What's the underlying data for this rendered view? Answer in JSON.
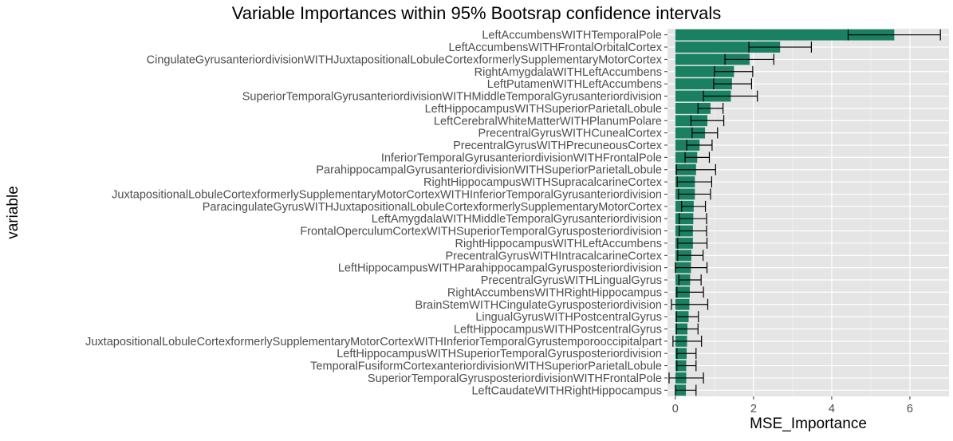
{
  "chart_data": {
    "type": "bar",
    "orientation": "horizontal",
    "title": "Variable Importances within 95% Bootsrap confidence intervals",
    "xlabel": "MSE_Importance",
    "ylabel": "variable",
    "xlim": [
      -0.2,
      7.0
    ],
    "xticks": [
      0,
      2,
      4,
      6
    ],
    "grid": true,
    "bar_color": "#1a8062",
    "panel_background": "#e5e5e5",
    "categories": [
      "LeftAccumbensWITHTemporalPole",
      "LeftAccumbensWITHFrontalOrbitalCortex",
      "CingulateGyrusanteriordivisionWITHJuxtapositionalLobuleCortexformerlySupplementaryMotorCortex",
      "RightAmygdalaWITHLeftAccumbens",
      "LeftPutamenWITHLeftAccumbens",
      "SuperiorTemporalGyrusanteriordivisionWITHMiddleTemporalGyrusanteriordivision",
      "LeftHippocampusWITHSuperiorParietalLobule",
      "LeftCerebralWhiteMatterWITHPlanumPolare",
      "PrecentralGyrusWITHCunealCortex",
      "PrecentralGyrusWITHPrecuneousCortex",
      "InferiorTemporalGyrusanteriordivisionWITHFrontalPole",
      "ParahippocampalGyrusanteriordivisionWITHSuperiorParietalLobule",
      "RightHippocampusWITHSupracalcarineCortex",
      "JuxtapositionalLobuleCortexformerlySupplementaryMotorCortexWITHInferiorTemporalGyrusanteriordivision",
      "ParacingulateGyrusWITHJuxtapositionalLobuleCortexformerlySupplementaryMotorCortex",
      "LeftAmygdalaWITHMiddleTemporalGyrusanteriordivision",
      "FrontalOperculumCortexWITHSuperiorTemporalGyrusposteriordivision",
      "RightHippocampusWITHLeftAccumbens",
      "PrecentralGyrusWITHIntracalcarineCortex",
      "LeftHippocampusWITHParahippocampalGyrusposteriordivision",
      "PrecentralGyrusWITHLingualGyrus",
      "RightAccumbensWITHRightHippocampus",
      "BrainStemWITHCingulateGyrusposteriordivision",
      "LingualGyrusWITHPostcentralGyrus",
      "LeftHippocampusWITHPostcentralGyrus",
      "JuxtapositionalLobuleCortexformerlySupplementaryMotorCortexWITHInferiorTemporalGyrustemporooccipitalpart",
      "LeftHippocampusWITHSuperiorTemporalGyrusposteriordivision",
      "TemporalFusiformCortexanteriordivisionWITHSuperiorParietalLobule",
      "SuperiorTemporalGyrusposteriordivisionWITHFrontalPole",
      "LeftCaudateWITHRightHippocampus"
    ],
    "values": [
      5.6,
      2.68,
      1.9,
      1.5,
      1.45,
      1.42,
      0.9,
      0.82,
      0.76,
      0.62,
      0.56,
      0.53,
      0.5,
      0.5,
      0.47,
      0.46,
      0.45,
      0.45,
      0.41,
      0.4,
      0.38,
      0.37,
      0.36,
      0.34,
      0.31,
      0.3,
      0.29,
      0.28,
      0.28,
      0.27
    ],
    "ci_lower": [
      4.42,
      1.88,
      1.27,
      1.0,
      0.98,
      0.72,
      0.58,
      0.4,
      0.43,
      0.29,
      0.25,
      0.03,
      0.05,
      0.08,
      0.16,
      0.1,
      0.1,
      0.06,
      0.06,
      0.0,
      0.09,
      0.04,
      -0.1,
      0.03,
      0.03,
      -0.06,
      0.04,
      0.04,
      -0.16,
      0.0
    ],
    "ci_upper": [
      6.78,
      3.48,
      2.52,
      1.98,
      1.95,
      2.1,
      1.22,
      1.24,
      1.08,
      0.94,
      0.87,
      1.03,
      0.93,
      0.9,
      0.77,
      0.8,
      0.8,
      0.81,
      0.71,
      0.81,
      0.66,
      0.72,
      0.83,
      0.59,
      0.58,
      0.67,
      0.53,
      0.53,
      0.72,
      0.53
    ]
  }
}
